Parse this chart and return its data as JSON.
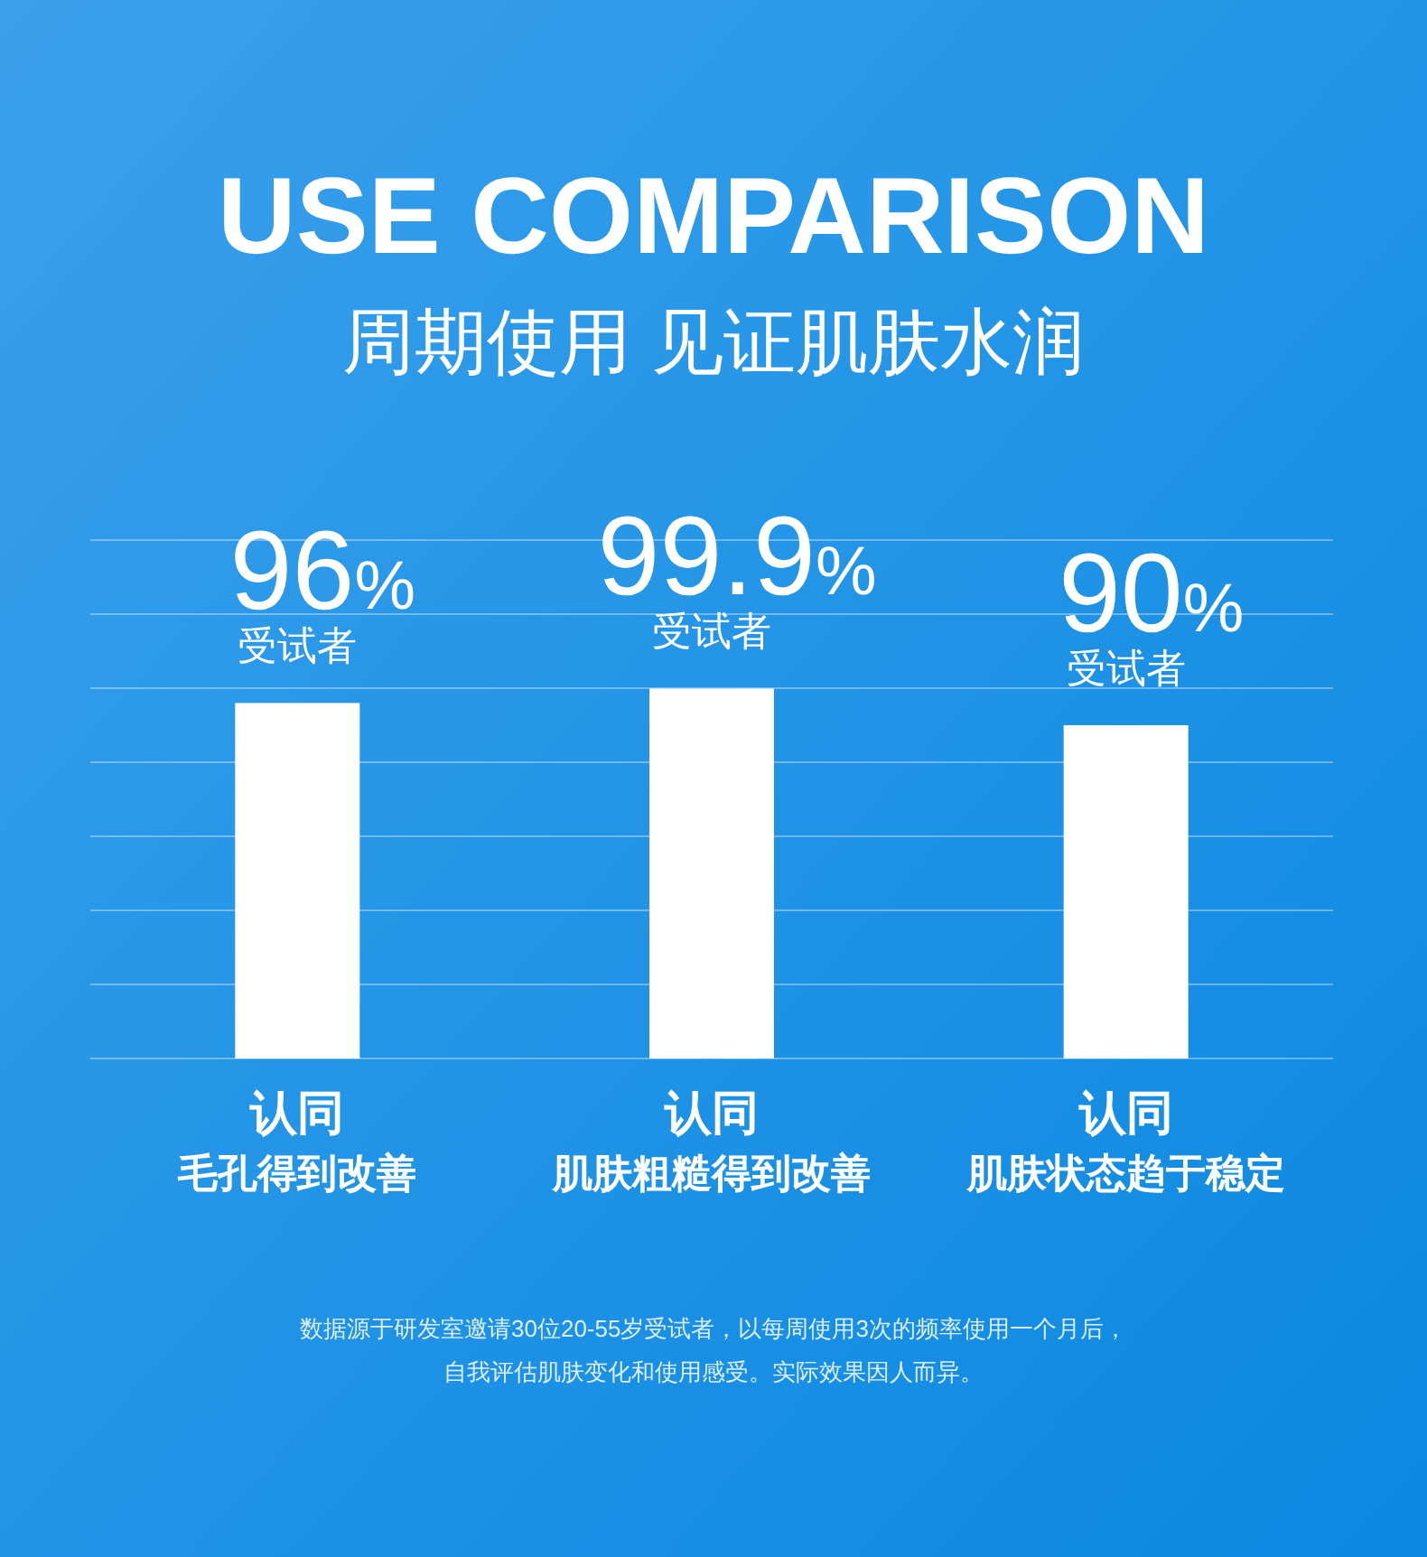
{
  "chart_data": {
    "type": "bar",
    "title": "USE COMPARISON",
    "subtitle": "周期使用 见证肌肤水润",
    "categories": [
      "认同毛孔得到改善",
      "认同肌肤粗糙得到改善",
      "认同肌肤状态趋于稳定"
    ],
    "values": [
      96,
      99.9,
      90
    ],
    "color": "#ffffff",
    "value_labels": [
      "96%",
      "99.9%",
      "90%"
    ],
    "ylim": [
      0,
      140
    ],
    "yticks": [
      {
        "value": 0,
        "label": null
      },
      {
        "value": 20,
        "label": null
      },
      {
        "value": 40,
        "label": null
      },
      {
        "value": 60,
        "label": null
      },
      {
        "value": 80,
        "label": null
      },
      {
        "value": 100,
        "label": null
      },
      {
        "value": 120,
        "label": null
      },
      {
        "value": 140,
        "label": null
      }
    ],
    "tick_labels": "x",
    "grid": "y",
    "annotations": [
      {
        "text": "受试者",
        "x": "认同毛孔得到改善",
        "y": 96
      },
      {
        "text": "受试者",
        "x": "认同肌肤粗糙得到改善",
        "y": 99.9
      },
      {
        "text": "受试者",
        "x": "认同肌肤状态趋于稳定",
        "y": 90
      },
      "数据源于研发室邀请30位20-55岁受试者，以每周使用3次的频率使用一个月后，",
      "自我评估肌肤变化和使用感受。实际效果因人而异。"
    ]
  }
}
